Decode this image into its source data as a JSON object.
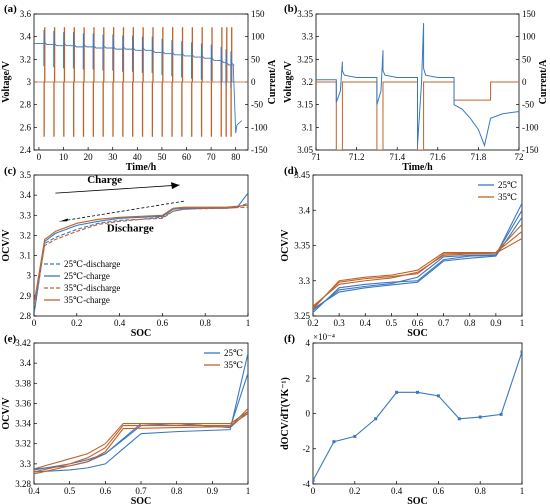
{
  "colors": {
    "blue": "#3a78c3",
    "orange": "#c0632a",
    "black": "#000000"
  },
  "chart_data": [
    {
      "panel": "(a)",
      "type": "line",
      "xlabel": "Time/h",
      "ylabel": "Voltage/V",
      "ylabel_right": "Current/A",
      "xlim": [
        -2,
        85
      ],
      "ylim": [
        2.4,
        3.6
      ],
      "ylim_right": [
        -150,
        150
      ],
      "xticks": [
        "0",
        "10",
        "20",
        "30",
        "40",
        "50",
        "60",
        "70",
        "80"
      ],
      "yticks": [
        "2.4",
        "2.6",
        "2.8",
        "3",
        "3.2",
        "3.4",
        "3.6"
      ],
      "yticks_right": [
        "-150",
        "-100",
        "-50",
        "0",
        "50",
        "100",
        "150"
      ],
      "pulse_times": [
        2,
        6,
        10,
        14,
        18,
        22,
        26,
        30,
        34,
        38,
        42,
        46,
        50,
        54,
        58,
        62,
        66,
        70,
        74,
        76,
        78
      ],
      "voltage_levels": [
        3.34,
        3.33,
        3.32,
        3.32,
        3.31,
        3.31,
        3.3,
        3.3,
        3.29,
        3.29,
        3.28,
        3.28,
        3.26,
        3.25,
        3.24,
        3.23,
        3.22,
        3.21,
        3.19,
        3.17,
        3.15
      ],
      "voltage_tail": {
        "x": [
          79,
          80,
          80.5,
          82.5
        ],
        "y": [
          3.15,
          2.55,
          2.62,
          2.66
        ]
      },
      "current_range": [
        -120,
        120
      ]
    },
    {
      "panel": "(b)",
      "type": "line",
      "xlabel": "Time/h",
      "ylabel": "Voltage/V",
      "ylabel_right": "Current/A",
      "xlim": [
        71,
        72
      ],
      "ylim": [
        3.05,
        3.35
      ],
      "ylim_right": [
        -150,
        150
      ],
      "xticks": [
        "71",
        "71.2",
        "71.4",
        "71.6",
        "71.8",
        "72"
      ],
      "yticks": [
        "3.05",
        "3.1",
        "3.15",
        "3.2",
        "3.25",
        "3.3",
        "3.35"
      ],
      "yticks_right": [
        "-150",
        "-100",
        "-50",
        "0",
        "50",
        "100",
        "150"
      ],
      "voltage": {
        "x": [
          71.0,
          71.1,
          71.1,
          71.12,
          71.13,
          71.13,
          71.14,
          71.2,
          71.3,
          71.3,
          71.32,
          71.33,
          71.33,
          71.34,
          71.4,
          71.5,
          71.5,
          71.52,
          71.53,
          71.53,
          71.54,
          71.6,
          71.68,
          71.68,
          71.72,
          71.76,
          71.8,
          71.83,
          71.86,
          71.92,
          72.0
        ],
        "y": [
          3.205,
          3.205,
          3.155,
          3.18,
          3.245,
          3.225,
          3.215,
          3.21,
          3.21,
          3.15,
          3.18,
          3.27,
          3.225,
          3.215,
          3.21,
          3.21,
          3.06,
          3.2,
          3.33,
          3.23,
          3.215,
          3.21,
          3.21,
          3.15,
          3.14,
          3.12,
          3.095,
          3.06,
          3.12,
          3.13,
          3.135
        ]
      },
      "current": {
        "x": [
          71.0,
          71.1,
          71.1,
          71.13,
          71.13,
          71.3,
          71.3,
          71.33,
          71.33,
          71.5,
          71.5,
          71.53,
          71.53,
          71.68,
          71.68,
          71.86,
          71.86,
          72.0
        ],
        "y": [
          0,
          0,
          -150,
          -150,
          0,
          0,
          -150,
          -150,
          0,
          0,
          -150,
          -150,
          0,
          0,
          -40,
          -40,
          0,
          0
        ]
      }
    },
    {
      "panel": "(c)",
      "type": "line",
      "xlabel": "SOC",
      "ylabel": "OCV/V",
      "xlim": [
        0,
        1
      ],
      "ylim": [
        2.8,
        3.5
      ],
      "xticks": [
        "0",
        "0.2",
        "0.4",
        "0.6",
        "0.8",
        "1"
      ],
      "yticks": [
        "2.8",
        "2.9",
        "3",
        "3.1",
        "3.2",
        "3.3",
        "3.4",
        "3.5"
      ],
      "annotations": [
        "Charge",
        "Discharge"
      ],
      "legend": "bottom-left",
      "series": [
        {
          "name": "25℃-discharge",
          "dash": true,
          "color": "blue",
          "x": [
            0,
            0.05,
            0.1,
            0.2,
            0.3,
            0.4,
            0.5,
            0.6,
            0.65,
            0.7,
            0.8,
            0.9,
            0.95,
            1
          ],
          "y": [
            2.81,
            3.16,
            3.19,
            3.23,
            3.26,
            3.275,
            3.28,
            3.29,
            3.32,
            3.33,
            3.335,
            3.335,
            3.34,
            3.36
          ]
        },
        {
          "name": "25℃-charge",
          "dash": false,
          "color": "blue",
          "x": [
            0,
            0.05,
            0.1,
            0.2,
            0.3,
            0.4,
            0.5,
            0.6,
            0.65,
            0.7,
            0.8,
            0.9,
            0.95,
            1
          ],
          "y": [
            2.81,
            3.17,
            3.21,
            3.25,
            3.27,
            3.285,
            3.29,
            3.295,
            3.33,
            3.335,
            3.335,
            3.335,
            3.34,
            3.41
          ]
        },
        {
          "name": "35℃-discharge",
          "dash": true,
          "color": "orange",
          "x": [
            0,
            0.05,
            0.1,
            0.2,
            0.3,
            0.4,
            0.5,
            0.6,
            0.65,
            0.7,
            0.8,
            0.9,
            0.95,
            1
          ],
          "y": [
            2.85,
            3.15,
            3.18,
            3.22,
            3.255,
            3.27,
            3.28,
            3.285,
            3.32,
            3.33,
            3.333,
            3.335,
            3.338,
            3.34
          ]
        },
        {
          "name": "35℃-charge",
          "dash": false,
          "color": "orange",
          "x": [
            0,
            0.05,
            0.1,
            0.2,
            0.3,
            0.4,
            0.5,
            0.6,
            0.65,
            0.7,
            0.8,
            0.9,
            0.95,
            1
          ],
          "y": [
            2.86,
            3.18,
            3.22,
            3.26,
            3.28,
            3.29,
            3.295,
            3.3,
            3.335,
            3.34,
            3.34,
            3.34,
            3.345,
            3.35
          ]
        }
      ]
    },
    {
      "panel": "(d)",
      "type": "line",
      "xlabel": "SOC",
      "ylabel": "OCV/V",
      "xlim": [
        0.2,
        1
      ],
      "ylim": [
        3.25,
        3.45
      ],
      "xticks": [
        "0.2",
        "0.3",
        "0.4",
        "0.5",
        "0.6",
        "0.7",
        "0.8",
        "0.9",
        "1"
      ],
      "yticks": [
        "3.25",
        "3.3",
        "3.35",
        "3.4",
        "3.45"
      ],
      "legend": "top-right",
      "series": [
        {
          "name": "25℃",
          "color": "blue",
          "x": [
            0.2,
            0.3,
            0.4,
            0.5,
            0.6,
            0.7,
            0.8,
            0.9,
            1
          ],
          "y": [
            3.255,
            3.29,
            3.295,
            3.298,
            3.3,
            3.33,
            3.335,
            3.336,
            3.41
          ]
        },
        {
          "name": "",
          "color": "blue",
          "x": [
            0.2,
            0.3,
            0.4,
            0.5,
            0.6,
            0.7,
            0.8,
            0.9,
            1
          ],
          "y": [
            3.258,
            3.287,
            3.292,
            3.296,
            3.305,
            3.334,
            3.336,
            3.337,
            3.4
          ]
        },
        {
          "name": "",
          "color": "blue",
          "x": [
            0.2,
            0.3,
            0.4,
            0.5,
            0.6,
            0.7,
            0.8,
            0.9,
            1
          ],
          "y": [
            3.26,
            3.284,
            3.29,
            3.294,
            3.298,
            3.328,
            3.332,
            3.335,
            3.39
          ]
        },
        {
          "name": "35℃",
          "color": "orange",
          "x": [
            0.2,
            0.3,
            0.4,
            0.5,
            0.6,
            0.7,
            0.8,
            0.9,
            1
          ],
          "y": [
            3.26,
            3.3,
            3.305,
            3.308,
            3.315,
            3.34,
            3.34,
            3.34,
            3.38
          ]
        },
        {
          "name": "",
          "color": "orange",
          "x": [
            0.2,
            0.3,
            0.4,
            0.5,
            0.6,
            0.7,
            0.8,
            0.9,
            1
          ],
          "y": [
            3.262,
            3.298,
            3.303,
            3.306,
            3.31,
            3.338,
            3.339,
            3.34,
            3.37
          ]
        },
        {
          "name": "",
          "color": "orange",
          "x": [
            0.2,
            0.3,
            0.4,
            0.5,
            0.6,
            0.7,
            0.8,
            0.9,
            1
          ],
          "y": [
            3.264,
            3.295,
            3.3,
            3.304,
            3.312,
            3.336,
            3.338,
            3.339,
            3.36
          ]
        }
      ]
    },
    {
      "panel": "(e)",
      "type": "line",
      "xlabel": "SOC",
      "ylabel": "OCV/V",
      "xlim": [
        0.4,
        1
      ],
      "ylim": [
        3.28,
        3.42
      ],
      "xticks": [
        "0.4",
        "0.5",
        "0.6",
        "0.7",
        "0.8",
        "0.9",
        "1"
      ],
      "yticks": [
        "3.28",
        "3.3",
        "3.32",
        "3.34",
        "3.36",
        "3.38",
        "3.4",
        "3.42"
      ],
      "legend": "top-right",
      "series": [
        {
          "name": "25℃",
          "color": "blue",
          "x": [
            0.4,
            0.5,
            0.55,
            0.6,
            0.7,
            0.8,
            0.95,
            1
          ],
          "y": [
            3.292,
            3.294,
            3.296,
            3.3,
            3.33,
            3.332,
            3.334,
            3.41
          ]
        },
        {
          "name": "",
          "color": "blue",
          "x": [
            0.4,
            0.5,
            0.55,
            0.6,
            0.7,
            0.8,
            0.95,
            1
          ],
          "y": [
            3.295,
            3.298,
            3.302,
            3.31,
            3.338,
            3.34,
            3.336,
            3.39
          ]
        },
        {
          "name": "",
          "color": "blue",
          "x": [
            0.4,
            0.5,
            0.55,
            0.6,
            0.7,
            0.8,
            0.95,
            1
          ],
          "y": [
            3.294,
            3.3,
            3.304,
            3.31,
            3.34,
            3.34,
            3.336,
            3.352
          ]
        },
        {
          "name": "35℃",
          "color": "orange",
          "x": [
            0.4,
            0.5,
            0.55,
            0.6,
            0.65,
            0.8,
            0.95,
            1
          ],
          "y": [
            3.295,
            3.305,
            3.31,
            3.32,
            3.34,
            3.34,
            3.34,
            3.352
          ]
        },
        {
          "name": "",
          "color": "orange",
          "x": [
            0.4,
            0.5,
            0.55,
            0.6,
            0.65,
            0.8,
            0.95,
            1
          ],
          "y": [
            3.292,
            3.3,
            3.306,
            3.316,
            3.338,
            3.338,
            3.338,
            3.35
          ]
        },
        {
          "name": "",
          "color": "orange",
          "x": [
            0.4,
            0.5,
            0.55,
            0.6,
            0.65,
            0.8,
            0.95,
            1
          ],
          "y": [
            3.29,
            3.298,
            3.302,
            3.312,
            3.335,
            3.336,
            3.337,
            3.355
          ]
        }
      ]
    },
    {
      "panel": "(f)",
      "type": "line",
      "xlabel": "SOC",
      "ylabel": "dOCV/dT(VK⁻¹)",
      "exponent": "×10⁻⁴",
      "xlim": [
        0,
        1
      ],
      "ylim": [
        -4,
        4
      ],
      "xticks": [
        "0",
        "0.2",
        "0.4",
        "0.6",
        "0.8",
        "1"
      ],
      "yticks": [
        "-4",
        "-2",
        "0",
        "2",
        "4"
      ],
      "series": [
        {
          "name": "",
          "color": "blue",
          "x": [
            0,
            0.1,
            0.2,
            0.3,
            0.4,
            0.5,
            0.6,
            0.7,
            0.8,
            0.9,
            1
          ],
          "y": [
            -3.8,
            -1.6,
            -1.3,
            -0.3,
            1.2,
            1.2,
            1.0,
            -0.3,
            -0.2,
            -0.05,
            3.5
          ]
        }
      ]
    }
  ]
}
